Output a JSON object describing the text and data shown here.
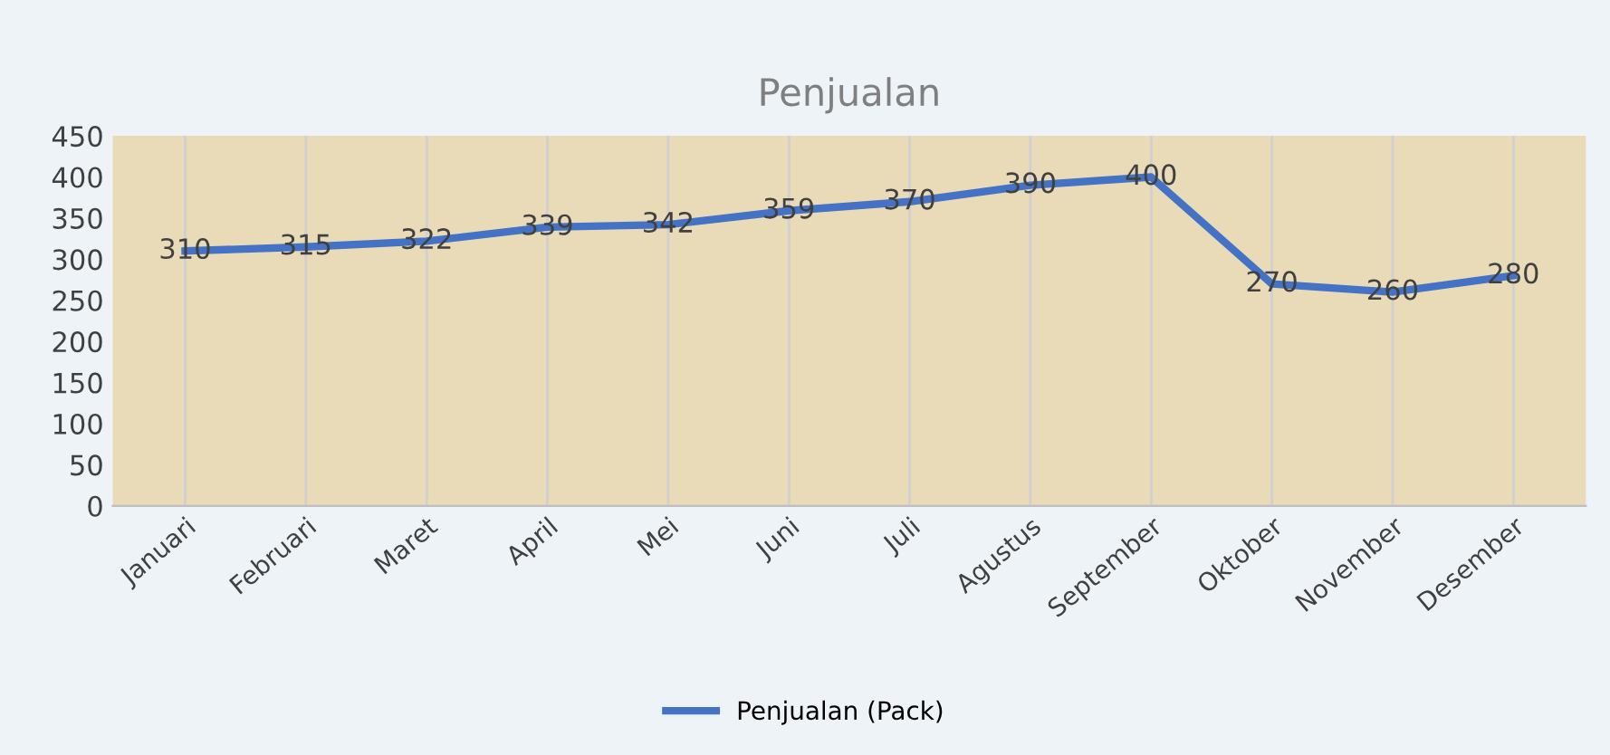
{
  "chart_data": {
    "type": "line",
    "title": "Penjualan",
    "categories": [
      "Januari",
      "Februari",
      "Maret",
      "April",
      "Mei",
      "Juni",
      "Juli",
      "Agustus",
      "September",
      "Oktober",
      "November",
      "Desember"
    ],
    "series": [
      {
        "name": "Penjualan (Pack)",
        "color": "#4472c4",
        "values": [
          310,
          315,
          322,
          339,
          342,
          359,
          370,
          390,
          400,
          270,
          260,
          280
        ]
      }
    ],
    "ylim": [
      0,
      450
    ],
    "yticks": [
      0,
      50,
      100,
      150,
      200,
      250,
      300,
      350,
      400,
      450
    ],
    "grid": "x",
    "legend": "bottom",
    "data_labels": true,
    "marker": "none",
    "line_style": "solid"
  }
}
